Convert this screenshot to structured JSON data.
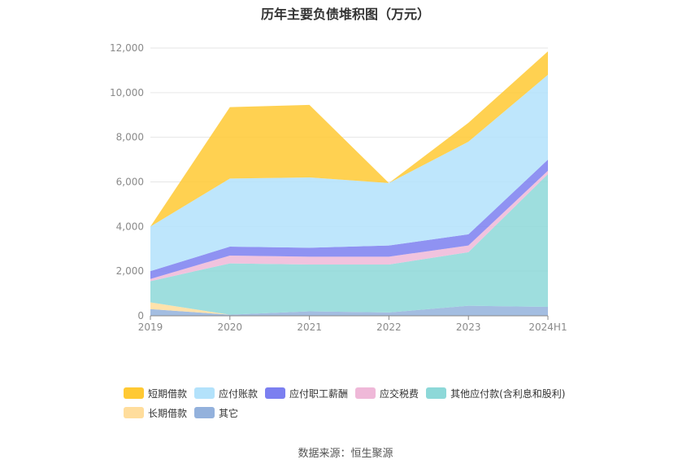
{
  "title": "历年主要负债堆积图（万元）",
  "source": "数据来源：恒生聚源",
  "chart_data": {
    "type": "area",
    "stacked": true,
    "categories": [
      "2019",
      "2020",
      "2021",
      "2022",
      "2023",
      "2024H1"
    ],
    "ylim": [
      0,
      12000
    ],
    "yticks": [
      "0",
      "2,000",
      "4,000",
      "6,000",
      "8,000",
      "10,000",
      "12,000"
    ],
    "ytick_values": [
      0,
      2000,
      4000,
      6000,
      8000,
      10000,
      12000
    ],
    "grid": true,
    "legend_position": "bottom",
    "series": [
      {
        "name": "其它",
        "color": "#93b1dc",
        "values": [
          300,
          50,
          200,
          150,
          450,
          400
        ]
      },
      {
        "name": "长期借款",
        "color": "#ffdd9c",
        "values": [
          300,
          0,
          0,
          0,
          0,
          0
        ]
      },
      {
        "name": "其他应付款(含利息和股利)",
        "color": "#8dd8d8",
        "values": [
          950,
          2300,
          2100,
          2150,
          2400,
          5950
        ]
      },
      {
        "name": "应交税费",
        "color": "#efb8d8",
        "values": [
          100,
          350,
          350,
          350,
          300,
          150
        ]
      },
      {
        "name": "应付职工薪酬",
        "color": "#7b7ff0",
        "values": [
          350,
          400,
          400,
          500,
          500,
          500
        ]
      },
      {
        "name": "应付账款",
        "color": "#b3e2fb",
        "values": [
          2000,
          3050,
          3150,
          2800,
          4150,
          3800
        ]
      },
      {
        "name": "短期借款",
        "color": "#ffc933",
        "values": [
          0,
          3200,
          3250,
          0,
          850,
          1050
        ]
      }
    ],
    "legend_rows": [
      [
        "短期借款",
        "应付账款",
        "应付职工薪酬",
        "应交税费",
        "其他应付款(含利息和股利)"
      ],
      [
        "长期借款",
        "其它"
      ]
    ]
  }
}
